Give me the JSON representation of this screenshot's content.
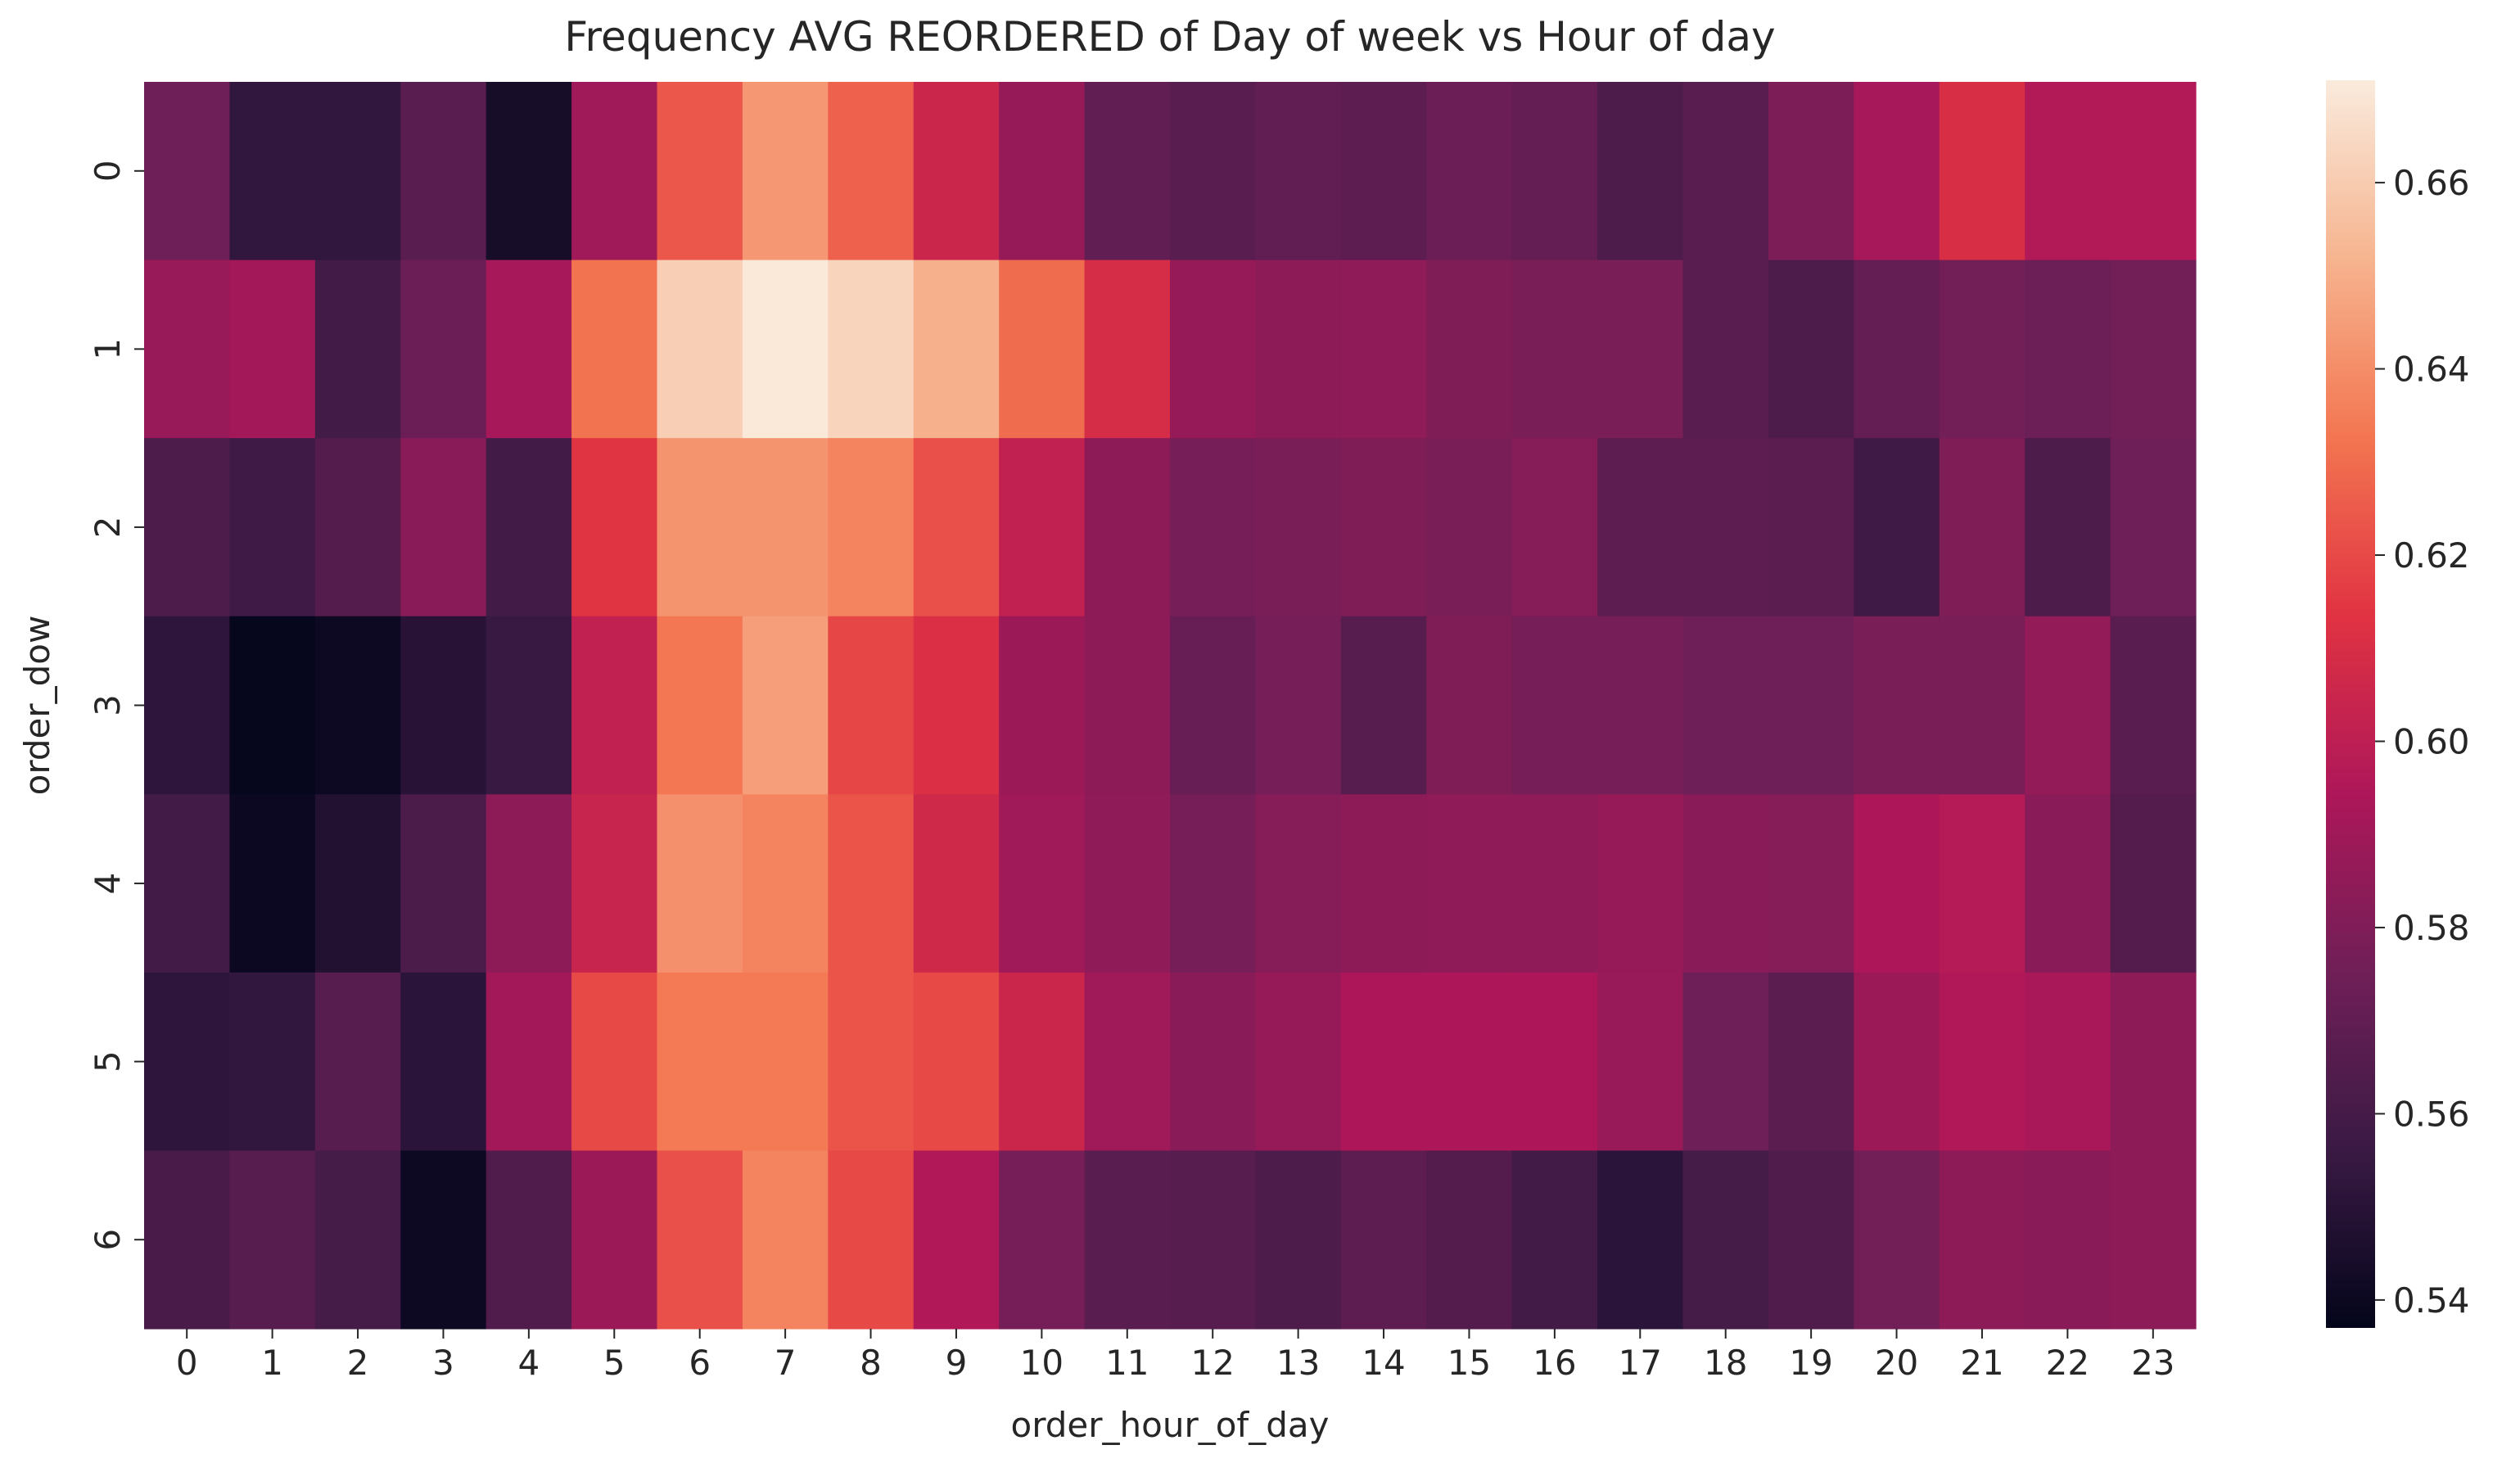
{
  "chart_data": {
    "type": "heatmap",
    "title": "Frequency AVG REORDERED of Day of week vs Hour of day",
    "xlabel": "order_hour_of_day",
    "ylabel": "order_dow",
    "x_categories": [
      "0",
      "1",
      "2",
      "3",
      "4",
      "5",
      "6",
      "7",
      "8",
      "9",
      "10",
      "11",
      "12",
      "13",
      "14",
      "15",
      "16",
      "17",
      "18",
      "19",
      "20",
      "21",
      "22",
      "23"
    ],
    "y_categories": [
      "0",
      "1",
      "2",
      "3",
      "4",
      "5",
      "6"
    ],
    "values": [
      [
        0.575,
        0.553,
        0.553,
        0.567,
        0.544,
        0.59,
        0.624,
        0.643,
        0.627,
        0.605,
        0.587,
        0.57,
        0.567,
        0.57,
        0.569,
        0.573,
        0.571,
        0.563,
        0.567,
        0.579,
        0.592,
        0.61,
        0.596,
        0.596
      ],
      [
        0.588,
        0.591,
        0.559,
        0.573,
        0.592,
        0.632,
        0.661,
        0.67,
        0.663,
        0.651,
        0.63,
        0.609,
        0.587,
        0.584,
        0.585,
        0.58,
        0.578,
        0.578,
        0.567,
        0.563,
        0.571,
        0.576,
        0.574,
        0.576
      ],
      [
        0.563,
        0.558,
        0.565,
        0.583,
        0.559,
        0.614,
        0.642,
        0.642,
        0.637,
        0.622,
        0.601,
        0.584,
        0.577,
        0.578,
        0.58,
        0.578,
        0.582,
        0.569,
        0.569,
        0.568,
        0.558,
        0.58,
        0.563,
        0.575
      ],
      [
        0.552,
        0.538,
        0.541,
        0.55,
        0.555,
        0.601,
        0.633,
        0.645,
        0.619,
        0.611,
        0.589,
        0.584,
        0.572,
        0.577,
        0.566,
        0.58,
        0.577,
        0.577,
        0.575,
        0.575,
        0.578,
        0.578,
        0.586,
        0.567
      ],
      [
        0.559,
        0.54,
        0.548,
        0.562,
        0.584,
        0.604,
        0.641,
        0.637,
        0.623,
        0.607,
        0.59,
        0.585,
        0.577,
        0.582,
        0.584,
        0.585,
        0.585,
        0.587,
        0.583,
        0.582,
        0.594,
        0.597,
        0.583,
        0.565
      ],
      [
        0.552,
        0.553,
        0.566,
        0.551,
        0.591,
        0.62,
        0.634,
        0.634,
        0.623,
        0.62,
        0.605,
        0.59,
        0.583,
        0.587,
        0.594,
        0.594,
        0.594,
        0.588,
        0.575,
        0.568,
        0.589,
        0.595,
        0.593,
        0.584
      ],
      [
        0.561,
        0.566,
        0.56,
        0.541,
        0.564,
        0.589,
        0.622,
        0.637,
        0.62,
        0.595,
        0.577,
        0.567,
        0.566,
        0.563,
        0.569,
        0.565,
        0.559,
        0.551,
        0.56,
        0.564,
        0.576,
        0.584,
        0.583,
        0.584
      ]
    ],
    "colormap": "rocket",
    "colorbar": {
      "vmin": 0.537,
      "vmax": 0.671,
      "ticks": [
        0.54,
        0.56,
        0.58,
        0.6,
        0.62,
        0.64,
        0.66
      ],
      "tick_labels": [
        "0.54",
        "0.56",
        "0.58",
        "0.60",
        "0.62",
        "0.64",
        "0.66"
      ],
      "stops": [
        "#03051a",
        "#3a1a44",
        "#701f57",
        "#ae1759",
        "#e13342",
        "#f37651",
        "#f6b48f",
        "#faebdd"
      ]
    },
    "grid": false
  }
}
